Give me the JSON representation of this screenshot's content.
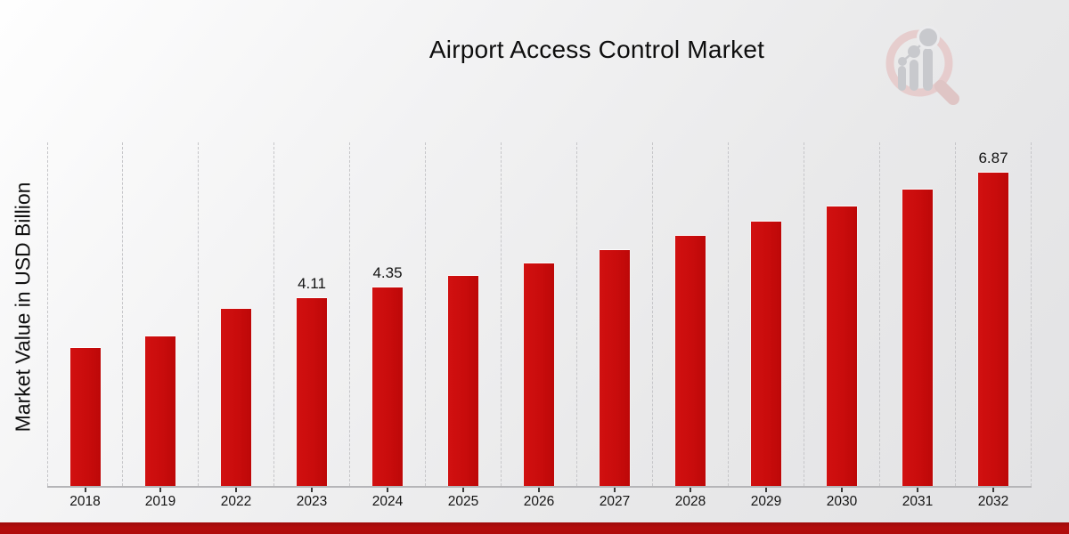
{
  "header": {
    "title": "Airport Access Control Market"
  },
  "branding": {
    "logo_icon": "magnifier-bar-chart-logo",
    "logo_ring_color": "#e6caca",
    "logo_gray_color": "#c5c6ca"
  },
  "chart_data": {
    "type": "bar",
    "title": "Airport Access Control Market",
    "xlabel": "",
    "ylabel": "Market Value in USD Billion",
    "categories": [
      "2018",
      "2019",
      "2022",
      "2023",
      "2024",
      "2025",
      "2026",
      "2027",
      "2028",
      "2029",
      "2030",
      "2031",
      "2032"
    ],
    "values": [
      3.02,
      3.28,
      3.88,
      4.11,
      4.35,
      4.61,
      4.88,
      5.17,
      5.48,
      5.78,
      6.12,
      6.49,
      6.87
    ],
    "data_labels": [
      "",
      "",
      "",
      "4.11",
      "4.35",
      "",
      "",
      "",
      "",
      "",
      "",
      "",
      "6.87"
    ],
    "bar_color": "#c90c0c",
    "footer_stripe_color": "#b00b0b",
    "ylim": [
      0,
      7.5
    ],
    "grid": "vertical-dashed",
    "legend": "none"
  }
}
